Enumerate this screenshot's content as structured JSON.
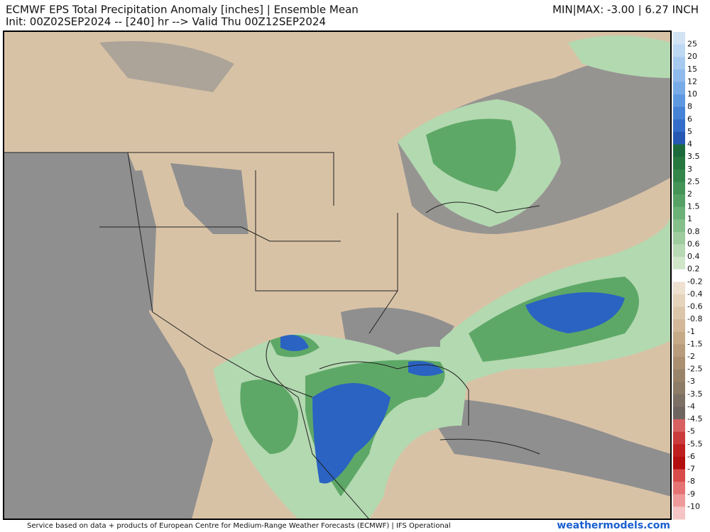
{
  "header": {
    "title": "ECMWF EPS Total Precipitation Anomaly [inches] | Ensemble Mean",
    "subtitle": "Init: 00Z02SEP2024 -- [240] hr --> Valid Thu 00Z12SEP2024",
    "minmax": "MIN|MAX: -3.00 | 6.27 INCH"
  },
  "colorbar": {
    "labels": [
      "25",
      "20",
      "15",
      "12",
      "10",
      "8",
      "6",
      "5",
      "4",
      "3.5",
      "3",
      "2.5",
      "2",
      "1.5",
      "1",
      "0.8",
      "0.6",
      "0.4",
      "0.2",
      "-0.2",
      "-0.4",
      "-0.6",
      "-0.8",
      "-1",
      "-1.5",
      "-2",
      "-2.5",
      "-3",
      "-3.5",
      "-4",
      "-4.5",
      "-5",
      "-5.5",
      "-6",
      "-7",
      "-8",
      "-9",
      "-10"
    ],
    "colors": [
      "#d2e4f4",
      "#bdd8f2",
      "#a6caef",
      "#8fbbec",
      "#77abe8",
      "#5e98e0",
      "#4683d6",
      "#336dc9",
      "#2658b3",
      "#1c6a3b",
      "#26783f",
      "#338649",
      "#439456",
      "#56a264",
      "#6cb176",
      "#85bf8a",
      "#9ecc9f",
      "#b7d9b4",
      "#cfe6c9",
      "#ffffff",
      "#eee0cf",
      "#e5d3bc",
      "#dcc6aa",
      "#d2b898",
      "#c6aa88",
      "#b99c7b",
      "#ab8f71",
      "#9a8469",
      "#8c7b66",
      "#7c7064",
      "#6e6560",
      "#d86060",
      "#cc3b3b",
      "#c01f1f",
      "#b30f0f",
      "#d94b4b",
      "#e67373",
      "#ef9a9a",
      "#f6c4c4"
    ]
  },
  "footer": {
    "credit": "Service based on data + products of European Centre for Medium-Range Weather Forecasts (ECMWF) | IFS Operational",
    "site": "weathermodels.com"
  }
}
